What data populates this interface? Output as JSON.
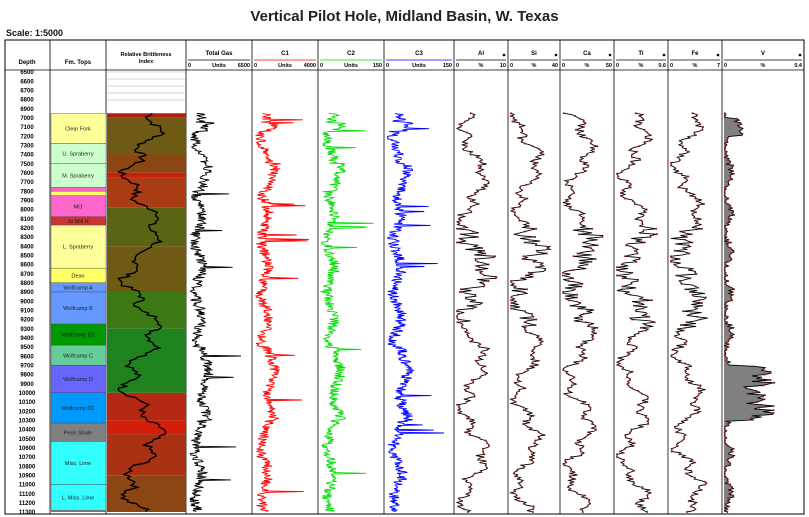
{
  "page": {
    "title": "Vertical Pilot Hole, Midland Basin, W. Texas",
    "scale_label": "Scale: 1:5000"
  },
  "chart_data": {
    "type": "line",
    "title": "Vertical Pilot Hole, Midland Basin, W. Texas",
    "depth_axis": {
      "label": "Depth",
      "range": [
        6500,
        11300
      ],
      "ticks": [
        6500,
        6600,
        6700,
        6800,
        6900,
        7000,
        7100,
        7200,
        7300,
        7400,
        7500,
        7600,
        7700,
        7800,
        7900,
        8000,
        8100,
        8200,
        8300,
        8400,
        8500,
        8600,
        8700,
        8800,
        8900,
        9000,
        9100,
        9200,
        9300,
        9400,
        9500,
        9600,
        9700,
        9800,
        9900,
        10000,
        10100,
        10200,
        10300,
        10400,
        10500,
        10600,
        10700,
        10800,
        10900,
        11000,
        11100,
        11200,
        11300
      ]
    },
    "formation_header": "Fm. Tops",
    "brittleness_header": [
      "Relative Brittleness",
      "Index"
    ],
    "formations": [
      {
        "name": "Clear Fork",
        "top": 6950,
        "base": 7280,
        "color": "#ffff99"
      },
      {
        "name": "U. Spraberry",
        "top": 7280,
        "base": 7500,
        "color": "#ccffcc"
      },
      {
        "name": "M. Spraberry",
        "top": 7500,
        "base": 7760,
        "color": "#ccffcc"
      },
      {
        "name": "",
        "top": 7760,
        "base": 7800,
        "color": "#ff66cc"
      },
      {
        "name": "",
        "top": 7800,
        "base": 7850,
        "color": "#ffff66"
      },
      {
        "name": "MO",
        "top": 7850,
        "base": 8080,
        "color": "#ff66cc"
      },
      {
        "name": "Jo Mill H",
        "top": 8080,
        "base": 8170,
        "color": "#cc3333"
      },
      {
        "name": "L. Spraberry",
        "top": 8170,
        "base": 8640,
        "color": "#ffff99"
      },
      {
        "name": "Dean",
        "top": 8640,
        "base": 8800,
        "color": "#ffff66"
      },
      {
        "name": "Wolfcamp A",
        "top": 8800,
        "base": 8900,
        "color": "#6699ff"
      },
      {
        "name": "Wolfcamp B",
        "top": 8900,
        "base": 9250,
        "color": "#6699ff"
      },
      {
        "name": "Wolfcamp B2",
        "top": 9250,
        "base": 9480,
        "color": "#009900"
      },
      {
        "name": "Wolfcamp C",
        "top": 9480,
        "base": 9700,
        "color": "#66cc99"
      },
      {
        "name": "Wolfcamp D",
        "top": 9700,
        "base": 10000,
        "color": "#6666ff"
      },
      {
        "name": "Wolfcamp D1",
        "top": 10000,
        "base": 10330,
        "color": "#0099ff"
      },
      {
        "name": "Penn Shale",
        "top": 10330,
        "base": 10530,
        "color": "#808080"
      },
      {
        "name": "Miss. Lime",
        "top": 10530,
        "base": 11000,
        "color": "#33ffff"
      },
      {
        "name": "L. Miss. Lime",
        "top": 11000,
        "base": 11280,
        "color": "#33ffff"
      }
    ],
    "brittleness_bands": [
      {
        "top": 6950,
        "base": 7000,
        "color": "#b41e0f"
      },
      {
        "top": 7000,
        "base": 7400,
        "color": "#6e5a14"
      },
      {
        "top": 7400,
        "base": 7600,
        "color": "#8c4614"
      },
      {
        "top": 7600,
        "base": 7650,
        "color": "#c81e0a"
      },
      {
        "top": 7650,
        "base": 7980,
        "color": "#aa3c14"
      },
      {
        "top": 7980,
        "base": 8400,
        "color": "#5a6414"
      },
      {
        "top": 8400,
        "base": 8900,
        "color": "#6e5a14"
      },
      {
        "top": 8900,
        "base": 9300,
        "color": "#3c7814"
      },
      {
        "top": 9300,
        "base": 10000,
        "color": "#1e821e"
      },
      {
        "top": 10000,
        "base": 10300,
        "color": "#b42814"
      },
      {
        "top": 10300,
        "base": 10450,
        "color": "#d21e0a"
      },
      {
        "top": 10450,
        "base": 10900,
        "color": "#aa3214"
      },
      {
        "top": 10900,
        "base": 11300,
        "color": "#8c4614"
      }
    ],
    "tracks": [
      {
        "name": "Total Gas",
        "unit": "Units",
        "min": 0,
        "max": 6500,
        "color": "#000000",
        "style": "line",
        "pattern": "gas"
      },
      {
        "name": "C1",
        "unit": "Units",
        "min": 0,
        "max": 4000,
        "color": "#ff0000",
        "style": "line",
        "pattern": "gas"
      },
      {
        "name": "C2",
        "unit": "Units",
        "min": 0,
        "max": 150,
        "color": "#00dd00",
        "style": "line",
        "pattern": "gas"
      },
      {
        "name": "C3",
        "unit": "Units",
        "min": 0,
        "max": 150,
        "color": "#0000ff",
        "style": "line",
        "pattern": "gas"
      },
      {
        "name": "Al",
        "unit": "%",
        "min": 0,
        "max": 10,
        "color": "#000000",
        "marker": "#8b1a1a",
        "style": "elem",
        "pattern": "elem"
      },
      {
        "name": "Si",
        "unit": "%",
        "min": 0,
        "max": 40,
        "color": "#000000",
        "marker": "#8b1a1a",
        "style": "elem",
        "pattern": "elem"
      },
      {
        "name": "Ca",
        "unit": "%",
        "min": 0,
        "max": 50,
        "color": "#000000",
        "marker": "#8b1a1a",
        "style": "elem",
        "pattern": "elem"
      },
      {
        "name": "Ti",
        "unit": "%",
        "min": 0,
        "max": 0.6,
        "color": "#000000",
        "marker": "#8b1a1a",
        "style": "elem",
        "pattern": "elem"
      },
      {
        "name": "Fe",
        "unit": "%",
        "min": 0,
        "max": 7,
        "color": "#000000",
        "marker": "#8b1a1a",
        "style": "elem",
        "pattern": "elem"
      },
      {
        "name": "V",
        "unit": "%",
        "min": 0,
        "max": 0.4,
        "color": "#000000",
        "marker": "#8b1a1a",
        "style": "fill",
        "pattern": "v"
      }
    ],
    "grid": false
  }
}
